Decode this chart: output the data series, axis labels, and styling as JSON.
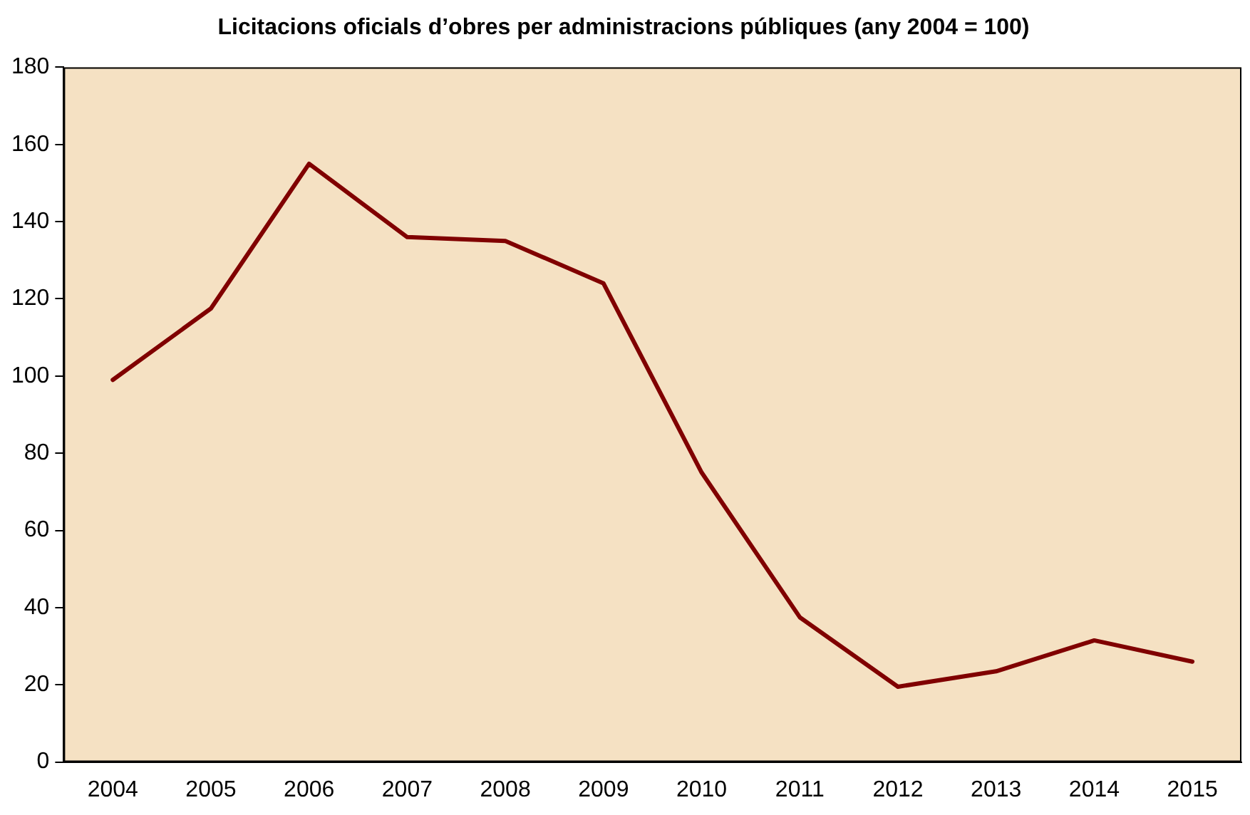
{
  "chart_data": {
    "type": "line",
    "title": "Licitacions oficials d’obres per administracions públiques (any 2004 = 100)",
    "categories": [
      "2004",
      "2005",
      "2006",
      "2007",
      "2008",
      "2009",
      "2010",
      "2011",
      "2012",
      "2013",
      "2014",
      "2015"
    ],
    "series": [
      {
        "color": "#800000",
        "values": [
          99,
          117.5,
          155,
          136,
          135,
          124,
          75,
          37.5,
          19.5,
          23.5,
          31.5,
          26
        ]
      }
    ],
    "ylim": [
      0,
      180
    ],
    "yticks": [
      0,
      20,
      40,
      60,
      80,
      100,
      120,
      140,
      160,
      180
    ],
    "grid": false,
    "legend": false,
    "marker": "none",
    "line_style": "solid"
  }
}
